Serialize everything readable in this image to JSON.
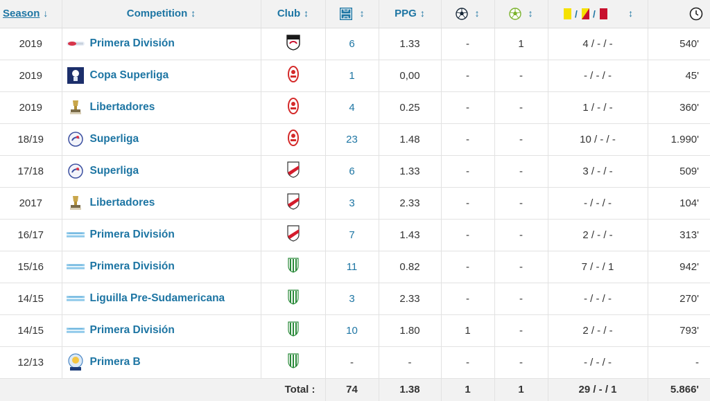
{
  "header": {
    "season": "Season",
    "competition": "Competition",
    "club": "Club",
    "ppg": "PPG",
    "sort_up_down": "↕",
    "sort_down": "↓",
    "icons": [
      "appearances-icon",
      "goals-icon",
      "assists-icon",
      "cards-icon",
      "minutes-clock-icon"
    ]
  },
  "rows": [
    {
      "season": "2019",
      "competition": "Primera División",
      "comp_logo": "primera-division-chile-logo",
      "club_logo": "colo-colo-crest",
      "apps": "6",
      "ppg": "1.33",
      "goals": "-",
      "assists": "1",
      "cards": "4 / - / -",
      "minutes": "540'"
    },
    {
      "season": "2019",
      "competition": "Copa Superliga",
      "comp_logo": "copa-superliga-logo",
      "club_logo": "huracan-crest",
      "apps": "1",
      "ppg": "0,00",
      "goals": "-",
      "assists": "-",
      "cards": "- / - / -",
      "minutes": "45'"
    },
    {
      "season": "2019",
      "competition": "Libertadores",
      "comp_logo": "libertadores-trophy-logo",
      "club_logo": "huracan-crest",
      "apps": "4",
      "ppg": "0.25",
      "goals": "-",
      "assists": "-",
      "cards": "1 / - / -",
      "minutes": "360'"
    },
    {
      "season": "18/19",
      "competition": "Superliga",
      "comp_logo": "superliga-logo",
      "club_logo": "huracan-crest",
      "apps": "23",
      "ppg": "1.48",
      "goals": "-",
      "assists": "-",
      "cards": "10 / - / -",
      "minutes": "1.990'"
    },
    {
      "season": "17/18",
      "competition": "Superliga",
      "comp_logo": "superliga-logo",
      "club_logo": "river-plate-crest",
      "apps": "6",
      "ppg": "1.33",
      "goals": "-",
      "assists": "-",
      "cards": "3 / - / -",
      "minutes": "509'"
    },
    {
      "season": "2017",
      "competition": "Libertadores",
      "comp_logo": "libertadores-trophy-logo",
      "club_logo": "river-plate-crest",
      "apps": "3",
      "ppg": "2.33",
      "goals": "-",
      "assists": "-",
      "cards": "- / - / -",
      "minutes": "104'"
    },
    {
      "season": "16/17",
      "competition": "Primera División",
      "comp_logo": "primera-division-argentina-logo",
      "club_logo": "river-plate-crest",
      "apps": "7",
      "ppg": "1.43",
      "goals": "-",
      "assists": "-",
      "cards": "2 / - / -",
      "minutes": "313'"
    },
    {
      "season": "15/16",
      "competition": "Primera División",
      "comp_logo": "primera-division-argentina-logo",
      "club_logo": "banfield-crest",
      "apps": "11",
      "ppg": "0.82",
      "goals": "-",
      "assists": "-",
      "cards": "7 / - / 1",
      "minutes": "942'"
    },
    {
      "season": "14/15",
      "competition": "Liguilla Pre-Sudamericana",
      "comp_logo": "primera-division-argentina-logo",
      "club_logo": "banfield-crest",
      "apps": "3",
      "ppg": "2.33",
      "goals": "-",
      "assists": "-",
      "cards": "- / - / -",
      "minutes": "270'"
    },
    {
      "season": "14/15",
      "competition": "Primera División",
      "comp_logo": "primera-division-argentina-logo",
      "club_logo": "banfield-crest",
      "apps": "10",
      "ppg": "1.80",
      "goals": "1",
      "assists": "-",
      "cards": "2 / - / -",
      "minutes": "793'"
    },
    {
      "season": "12/13",
      "competition": "Primera B",
      "comp_logo": "primera-b-nacional-logo",
      "club_logo": "banfield-crest",
      "apps": "-",
      "ppg": "-",
      "goals": "-",
      "assists": "-",
      "cards": "- / - / -",
      "minutes": "-"
    }
  ],
  "footer": {
    "label": "Total :",
    "apps": "74",
    "ppg": "1.38",
    "goals": "1",
    "assists": "1",
    "cards": "29 / - / 1",
    "minutes": "5.866'"
  },
  "colors": {
    "link": "#1d75a3",
    "header_bg": "#f2f2f2",
    "yellow_card": "#f5e100",
    "red_card": "#c8102e"
  }
}
